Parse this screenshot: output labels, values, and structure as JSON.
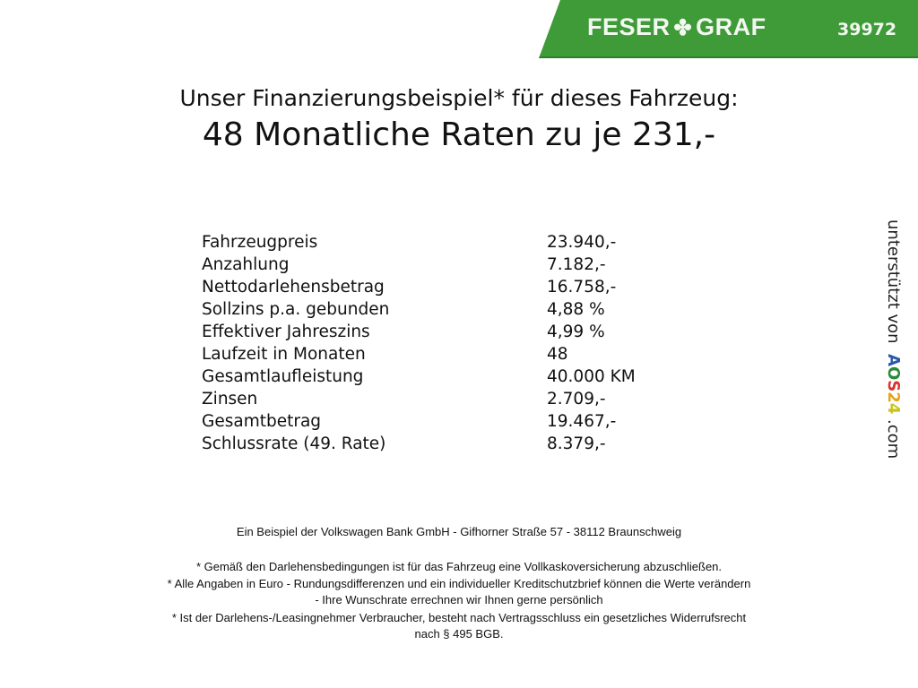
{
  "header": {
    "brand": "FESER",
    "brand2": "GRAF",
    "clover_icon": "clover-icon",
    "code": "39972",
    "color": "#3e9b38"
  },
  "title": {
    "line1": "Unser Finanzierungsbeispiel* für dieses Fahrzeug:",
    "line2": "48 Monatliche Raten zu je 231,-"
  },
  "rows": [
    {
      "label": "Fahrzeugpreis",
      "value": "23.940,-"
    },
    {
      "label": "Anzahlung",
      "value": "7.182,-"
    },
    {
      "label": "Nettodarlehensbetrag",
      "value": "16.758,-"
    },
    {
      "label": "Sollzins p.a. gebunden",
      "value": "4,88 %"
    },
    {
      "label": "Effektiver Jahreszins",
      "value": "4,99 %"
    },
    {
      "label": "Laufzeit in Monaten",
      "value": "48"
    },
    {
      "label": "Gesamtlaufleistung",
      "value": "40.000 KM"
    },
    {
      "label": "Zinsen",
      "value": "2.709,-"
    },
    {
      "label": "Gesamtbetrag",
      "value": "19.467,-"
    },
    {
      "label": "Schlussrate (49. Rate)",
      "value": "8.379,-"
    }
  ],
  "side": {
    "text": "unterstützt von",
    "logo": [
      "A",
      "O",
      "S",
      "2",
      "4"
    ],
    "domain": ".com",
    "logo_colors": [
      "#2a57a8",
      "#2a8a3a",
      "#d9342b",
      "#e8a21a",
      "#c8c41a"
    ]
  },
  "footer": {
    "bank": "Ein Beispiel der Volkswagen Bank GmbH - Gifhorner Straße 57 - 38112 Braunschweig",
    "note1": "* Gemäß den Darlehensbedingungen ist für das Fahrzeug eine Vollkaskoversicherung abzuschließen.",
    "note2a": "* Alle Angaben in Euro - Rundungsdifferenzen und ein individueller Kreditschutzbrief können die Werte verändern",
    "note2b": "- Ihre Wunschrate errechnen wir Ihnen gerne persönlich",
    "note3a": "* Ist der Darlehens-/Leasingnehmer Verbraucher, besteht nach Vertragsschluss ein gesetzliches Widerrufsrecht",
    "note3b": "nach § 495 BGB."
  }
}
